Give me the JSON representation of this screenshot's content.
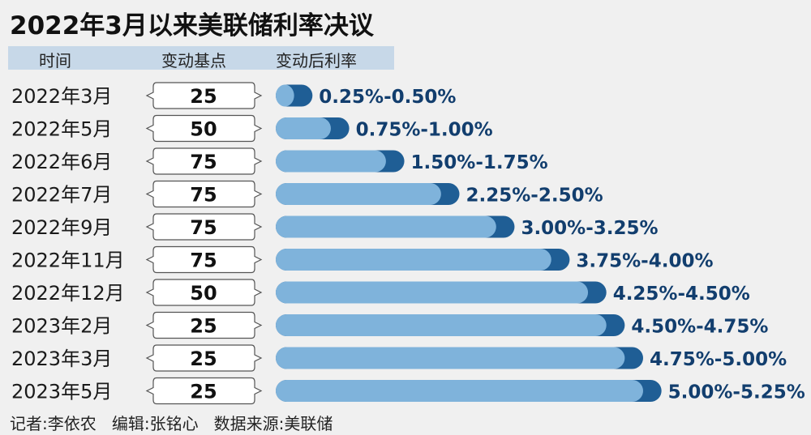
{
  "title": "2022年3月以来美联储利率决议",
  "headers": {
    "time": "时间",
    "bps": "变动基点",
    "rate": "变动后利率"
  },
  "chart_data": {
    "type": "bar",
    "title": "2022年3月以来美联储利率决议",
    "categories": [
      "2022年3月",
      "2022年5月",
      "2022年6月",
      "2022年7月",
      "2022年9月",
      "2022年11月",
      "2022年12月",
      "2023年2月",
      "2023年3月",
      "2023年5月"
    ],
    "bps": [
      "25",
      "50",
      "75",
      "75",
      "75",
      "75",
      "50",
      "25",
      "25",
      "25"
    ],
    "rate_labels": [
      "0.25%-0.50%",
      "0.75%-1.00%",
      "1.50%-1.75%",
      "2.25%-2.50%",
      "3.00%-3.25%",
      "3.75%-4.00%",
      "4.25%-4.50%",
      "4.50%-4.75%",
      "4.75%-5.00%",
      "5.00%-5.25%"
    ],
    "series": [
      {
        "name": "",
        "values": [
          0.25,
          0.75,
          1.5,
          2.25,
          3.0,
          3.75,
          4.25,
          4.5,
          4.75,
          5.0
        ]
      },
      {
        "name": "",
        "values": [
          0.5,
          1.0,
          1.75,
          2.5,
          3.25,
          4.0,
          4.5,
          4.75,
          5.0,
          5.25
        ]
      }
    ],
    "colors": {
      "lower": "#7fb3db",
      "upper": "#1f5e95",
      "label": "#123e6e"
    }
  },
  "footer": {
    "reporter": "记者:李依农",
    "editor": "编辑:张铭心",
    "source": "数据来源:美联储"
  }
}
